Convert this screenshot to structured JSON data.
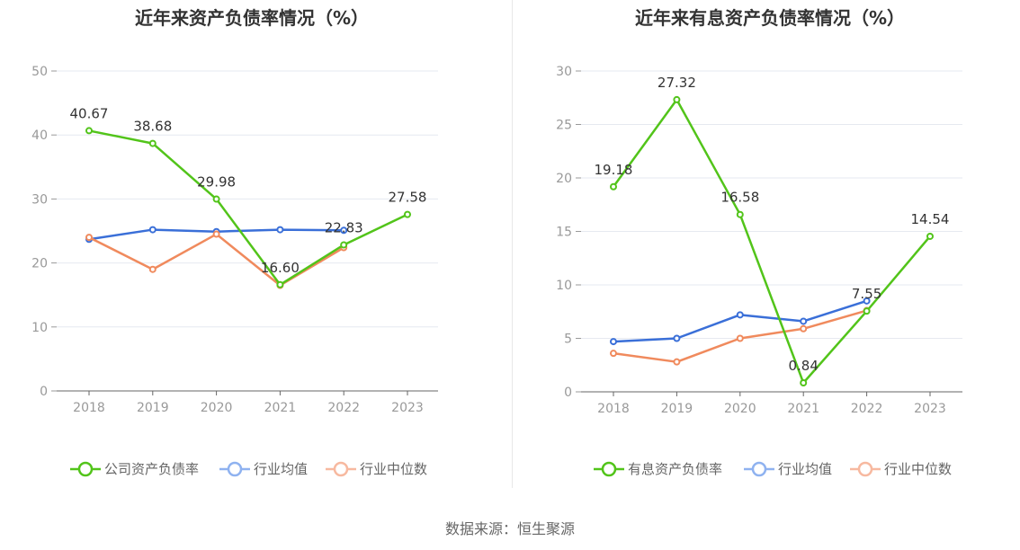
{
  "chart_data": [
    {
      "type": "line",
      "title": "近年来资产负债率情况（%）",
      "categories": [
        "2018",
        "2019",
        "2020",
        "2021",
        "2022",
        "2023"
      ],
      "ylim": [
        0,
        50
      ],
      "yticks": [
        "0",
        "10",
        "20",
        "30",
        "40",
        "50"
      ],
      "grid": true,
      "legend_position": "bottom",
      "series": [
        {
          "name": "公司资产负债率",
          "color": "#52c41a",
          "values": [
            40.67,
            38.68,
            29.98,
            16.6,
            22.83,
            27.58
          ],
          "labels": [
            "40.67",
            "38.68",
            "29.98",
            "16.60",
            "22.83",
            "27.58"
          ]
        },
        {
          "name": "行业均值",
          "color": "#3a6fd8",
          "values": [
            23.7,
            25.2,
            24.9,
            25.2,
            25.1,
            null
          ]
        },
        {
          "name": "行业中位数",
          "color": "#f08a5d",
          "values": [
            24.0,
            19.0,
            24.5,
            16.5,
            22.4,
            null
          ]
        }
      ]
    },
    {
      "type": "line",
      "title": "近年来有息资产负债率情况（%）",
      "categories": [
        "2018",
        "2019",
        "2020",
        "2021",
        "2022",
        "2023"
      ],
      "ylim": [
        0,
        30
      ],
      "yticks": [
        "0",
        "5",
        "10",
        "15",
        "20",
        "25",
        "30"
      ],
      "grid": true,
      "legend_position": "bottom",
      "series": [
        {
          "name": "有息资产负债率",
          "color": "#52c41a",
          "values": [
            19.18,
            27.32,
            16.58,
            0.84,
            7.55,
            14.54
          ],
          "labels": [
            "19.18",
            "27.32",
            "16.58",
            "0.84",
            "7.55",
            "14.54"
          ]
        },
        {
          "name": "行业均值",
          "color": "#3a6fd8",
          "values": [
            4.7,
            5.0,
            7.2,
            6.6,
            8.5,
            null
          ]
        },
        {
          "name": "行业中位数",
          "color": "#f08a5d",
          "values": [
            3.6,
            2.8,
            5.0,
            5.9,
            7.6,
            null
          ]
        }
      ]
    }
  ],
  "source": "数据来源：恒生聚源"
}
